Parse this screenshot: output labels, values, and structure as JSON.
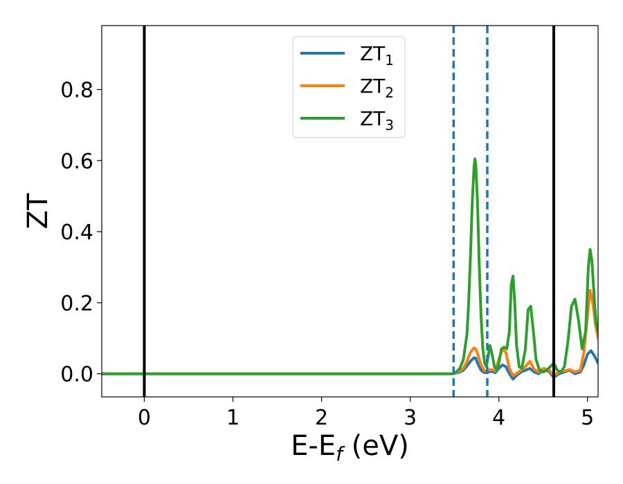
{
  "chart_data": {
    "type": "line",
    "title": "",
    "xlabel": "E-E",
    "xlabel_sub": "f",
    "xlabel_unit": " (eV)",
    "ylabel": "ZT",
    "xlim": [
      -0.48,
      5.12
    ],
    "ylim": [
      -0.065,
      0.98
    ],
    "xticks": [
      0,
      1,
      2,
      3,
      4,
      5
    ],
    "xtick_labels": [
      "0",
      "1",
      "2",
      "3",
      "4",
      "5"
    ],
    "yticks": [
      0.0,
      0.2,
      0.4,
      0.6,
      0.8
    ],
    "ytick_labels": [
      "0.0",
      "0.2",
      "0.4",
      "0.6",
      "0.8"
    ],
    "grid": false,
    "legend_position": "top-center",
    "vlines_solid": [
      0.0,
      4.62
    ],
    "vlines_dashed": [
      3.49,
      3.87
    ],
    "series": [
      {
        "name": "ZT",
        "subscript": "1",
        "color": "#1f77b4",
        "x": [
          -0.48,
          3.48,
          3.52,
          3.56,
          3.6,
          3.64,
          3.68,
          3.72,
          3.74,
          3.76,
          3.8,
          3.84,
          3.88,
          3.92,
          3.96,
          4.0,
          4.04,
          4.08,
          4.12,
          4.16,
          4.2,
          4.25,
          4.3,
          4.35,
          4.4,
          4.45,
          4.5,
          4.56,
          4.62,
          4.68,
          4.74,
          4.8,
          4.86,
          4.92,
          4.96,
          5.0,
          5.04,
          5.08,
          5.12
        ],
        "y": [
          0.0,
          0.0,
          0.002,
          0.005,
          0.01,
          0.022,
          0.035,
          0.045,
          0.044,
          0.03,
          0.01,
          0.003,
          0.005,
          0.007,
          0.003,
          0.015,
          0.025,
          0.02,
          0.0,
          -0.015,
          -0.005,
          0.005,
          0.01,
          0.015,
          0.005,
          0.0,
          0.01,
          0.008,
          -0.01,
          0.0,
          0.005,
          0.01,
          0.0,
          0.005,
          0.025,
          0.055,
          0.065,
          0.05,
          0.03
        ]
      },
      {
        "name": "ZT",
        "subscript": "2",
        "color": "#ff7f0e",
        "x": [
          -0.48,
          3.48,
          3.52,
          3.56,
          3.6,
          3.64,
          3.68,
          3.72,
          3.74,
          3.76,
          3.8,
          3.84,
          3.88,
          3.92,
          3.96,
          4.0,
          4.04,
          4.08,
          4.12,
          4.16,
          4.2,
          4.25,
          4.3,
          4.35,
          4.4,
          4.45,
          4.5,
          4.56,
          4.62,
          4.68,
          4.74,
          4.8,
          4.86,
          4.92,
          4.96,
          5.0,
          5.03,
          5.06,
          5.09,
          5.12
        ],
        "y": [
          0.0,
          0.0,
          0.003,
          0.008,
          0.015,
          0.035,
          0.06,
          0.073,
          0.07,
          0.058,
          0.025,
          0.008,
          0.01,
          0.012,
          0.008,
          0.04,
          0.07,
          0.06,
          0.015,
          -0.005,
          0.0,
          0.01,
          0.02,
          0.035,
          0.012,
          0.005,
          0.015,
          0.012,
          -0.005,
          0.005,
          0.008,
          0.012,
          0.005,
          0.01,
          0.06,
          0.16,
          0.235,
          0.2,
          0.14,
          0.1
        ]
      },
      {
        "name": "ZT",
        "subscript": "3",
        "color": "#2ca02c",
        "x": [
          -0.48,
          3.48,
          3.52,
          3.56,
          3.6,
          3.64,
          3.66,
          3.68,
          3.7,
          3.72,
          3.73,
          3.74,
          3.76,
          3.78,
          3.8,
          3.82,
          3.84,
          3.86,
          3.88,
          3.9,
          3.92,
          3.95,
          3.98,
          4.0,
          4.03,
          4.06,
          4.09,
          4.12,
          4.14,
          4.16,
          4.18,
          4.2,
          4.23,
          4.26,
          4.3,
          4.33,
          4.36,
          4.39,
          4.42,
          4.46,
          4.5,
          4.54,
          4.58,
          4.62,
          4.66,
          4.7,
          4.74,
          4.78,
          4.82,
          4.86,
          4.9,
          4.94,
          4.98,
          5.01,
          5.03,
          5.05,
          5.08,
          5.1,
          5.12
        ],
        "y": [
          0.0,
          0.0,
          0.005,
          0.015,
          0.04,
          0.11,
          0.2,
          0.33,
          0.48,
          0.58,
          0.605,
          0.59,
          0.48,
          0.3,
          0.16,
          0.07,
          0.03,
          0.02,
          0.05,
          0.08,
          0.06,
          0.02,
          0.01,
          0.03,
          0.07,
          0.075,
          0.07,
          0.12,
          0.25,
          0.275,
          0.2,
          0.08,
          0.02,
          0.015,
          0.07,
          0.18,
          0.19,
          0.12,
          0.04,
          0.01,
          0.005,
          0.01,
          0.02,
          0.03,
          0.01,
          0.005,
          0.02,
          0.09,
          0.19,
          0.21,
          0.15,
          0.07,
          0.12,
          0.3,
          0.35,
          0.32,
          0.2,
          0.14,
          0.12
        ]
      }
    ]
  }
}
